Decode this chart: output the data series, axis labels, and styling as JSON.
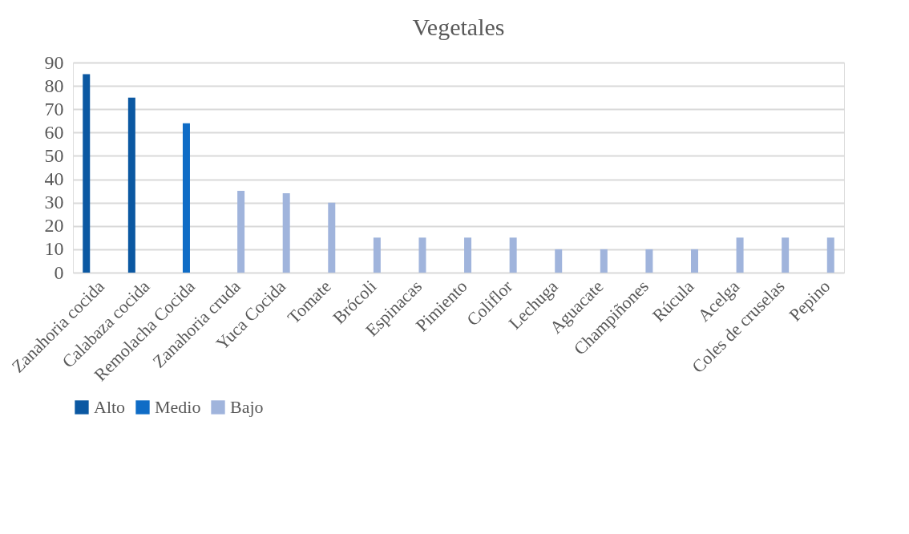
{
  "chart_data": {
    "type": "bar",
    "title": "Vegetales",
    "categories": [
      "Zanahoria cocida",
      "Calabaza cocida",
      "Remolacha Cocida",
      "Zanahoria cruda",
      "Yuca Cocida",
      "Tomate",
      "Brócoli",
      "Espinacas",
      "Pimiento",
      "Coliflor",
      "Lechuga",
      "Aguacate",
      "Champiñones",
      "Rúcula",
      "Acelga",
      "Coles de cruselas",
      "Pepino"
    ],
    "series": [
      {
        "name": "Alto",
        "color": "#0b58a2",
        "values": [
          85,
          75,
          null,
          null,
          null,
          null,
          null,
          null,
          null,
          null,
          null,
          null,
          null,
          null,
          null,
          null,
          null
        ]
      },
      {
        "name": "Medio",
        "color": "#0f6cc6",
        "values": [
          null,
          null,
          64,
          null,
          null,
          null,
          null,
          null,
          null,
          null,
          null,
          null,
          null,
          null,
          null,
          null,
          null
        ]
      },
      {
        "name": "Bajo",
        "color": "#a0b4dc",
        "values": [
          null,
          null,
          null,
          35,
          34,
          30,
          15,
          15,
          15,
          15,
          10,
          10,
          10,
          10,
          15,
          15,
          15
        ]
      }
    ],
    "ylim": [
      0,
      90
    ],
    "yticks": [
      0,
      10,
      20,
      30,
      40,
      50,
      60,
      70,
      80,
      90
    ],
    "grid": "y",
    "legend": "bottom"
  }
}
